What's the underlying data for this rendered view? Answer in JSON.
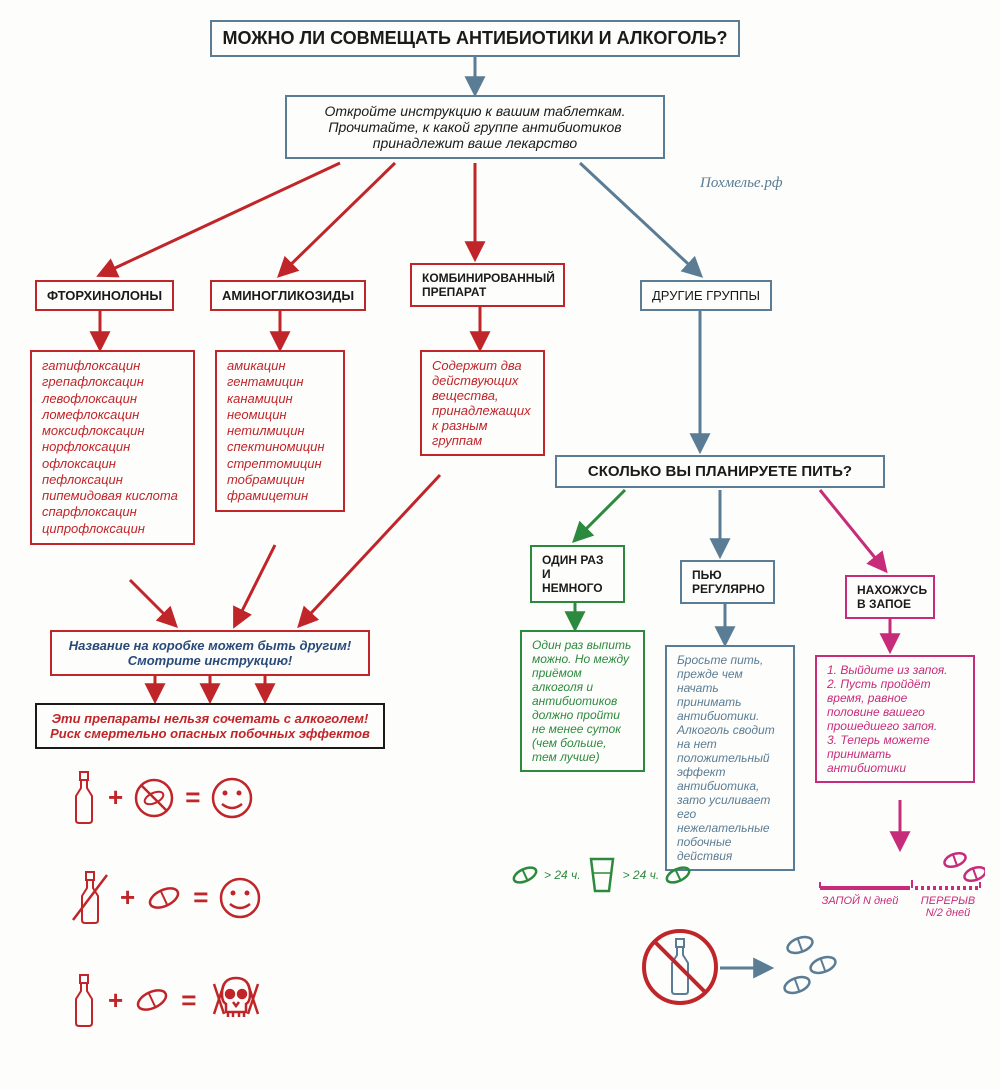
{
  "colors": {
    "blue": "#5a7c95",
    "red": "#c0252a",
    "green": "#2c8a3e",
    "magenta": "#c72c7a",
    "black": "#1a1a1a",
    "darkblue": "#2a4a7a"
  },
  "title": "МОЖНО ЛИ СОВМЕЩАТЬ АНТИБИОТИКИ И АЛКОГОЛЬ?",
  "instruction": "Откройте инструкцию к вашим таблеткам. Прочитайте, к какой группе антибиотиков принадлежит ваше лекарство",
  "watermark": "Похмелье.рф",
  "groups": {
    "ftorhinolony": {
      "label": "ФТОРХИНОЛОНЫ",
      "items": [
        "гатифлоксацин",
        "грепафлоксацин",
        "левофлоксацин",
        "ломефлоксацин",
        "моксифлоксацин",
        "норфлоксацин",
        "офлоксацин",
        "пефлоксацин",
        "пипемидовая кислота",
        "спарфлоксацин",
        "ципрофлоксацин"
      ]
    },
    "aminoglikozidy": {
      "label": "АМИНОГЛИКОЗИДЫ",
      "items": [
        "амикацин",
        "гентамицин",
        "канамицин",
        "неомицин",
        "нетилмицин",
        "спектиномицин",
        "стрептомицин",
        "тобрамицин",
        "фрамицетин"
      ]
    },
    "combo": {
      "label": "КОМБИНИРОВАННЫЙ ПРЕПАРАТ",
      "text": "Содержит два действующих вещества, принадлежащих к разным группам"
    },
    "other": {
      "label": "ДРУГИЕ ГРУППЫ"
    }
  },
  "warning1": "Название на коробке может быть другим! Смотрите инструкцию!",
  "warning2": "Эти препараты нельзя сочетать с алкоголем! Риск смертельно опасных побочных эффектов",
  "question2": "СКОЛЬКО ВЫ ПЛАНИРУЕТЕ ПИТЬ?",
  "options": {
    "once": {
      "label": "ОДИН РАЗ И НЕМНОГО",
      "text": "Один раз выпить можно. Но между приёмом алкоголя и антибиотиков должно пройти не менее суток (чем больше, тем лучше)",
      "icon_label1": "> 24 ч.",
      "icon_label2": "> 24 ч."
    },
    "regular": {
      "label": "ПЬЮ РЕГУЛЯРНО",
      "text": "Бросьте пить, прежде чем начать принимать антибиотики. Алкоголь сводит на нет положительный эффект антибиотика, зато усиливает его нежелательные побочные действия"
    },
    "binge": {
      "label": "НАХОЖУСЬ В ЗАПОЕ",
      "text": "1. Выйдите из запоя.\n2. Пусть пройдёт время, равное половине вашего прошедшего запоя.\n3. Теперь можете принимать антибиотики",
      "timeline1": "ЗАПОЙ N дней",
      "timeline2": "ПЕРЕРЫВ N/2 дней"
    }
  },
  "font": {
    "title_size": 18,
    "heading_size": 14,
    "body_size": 13,
    "small_size": 12
  }
}
